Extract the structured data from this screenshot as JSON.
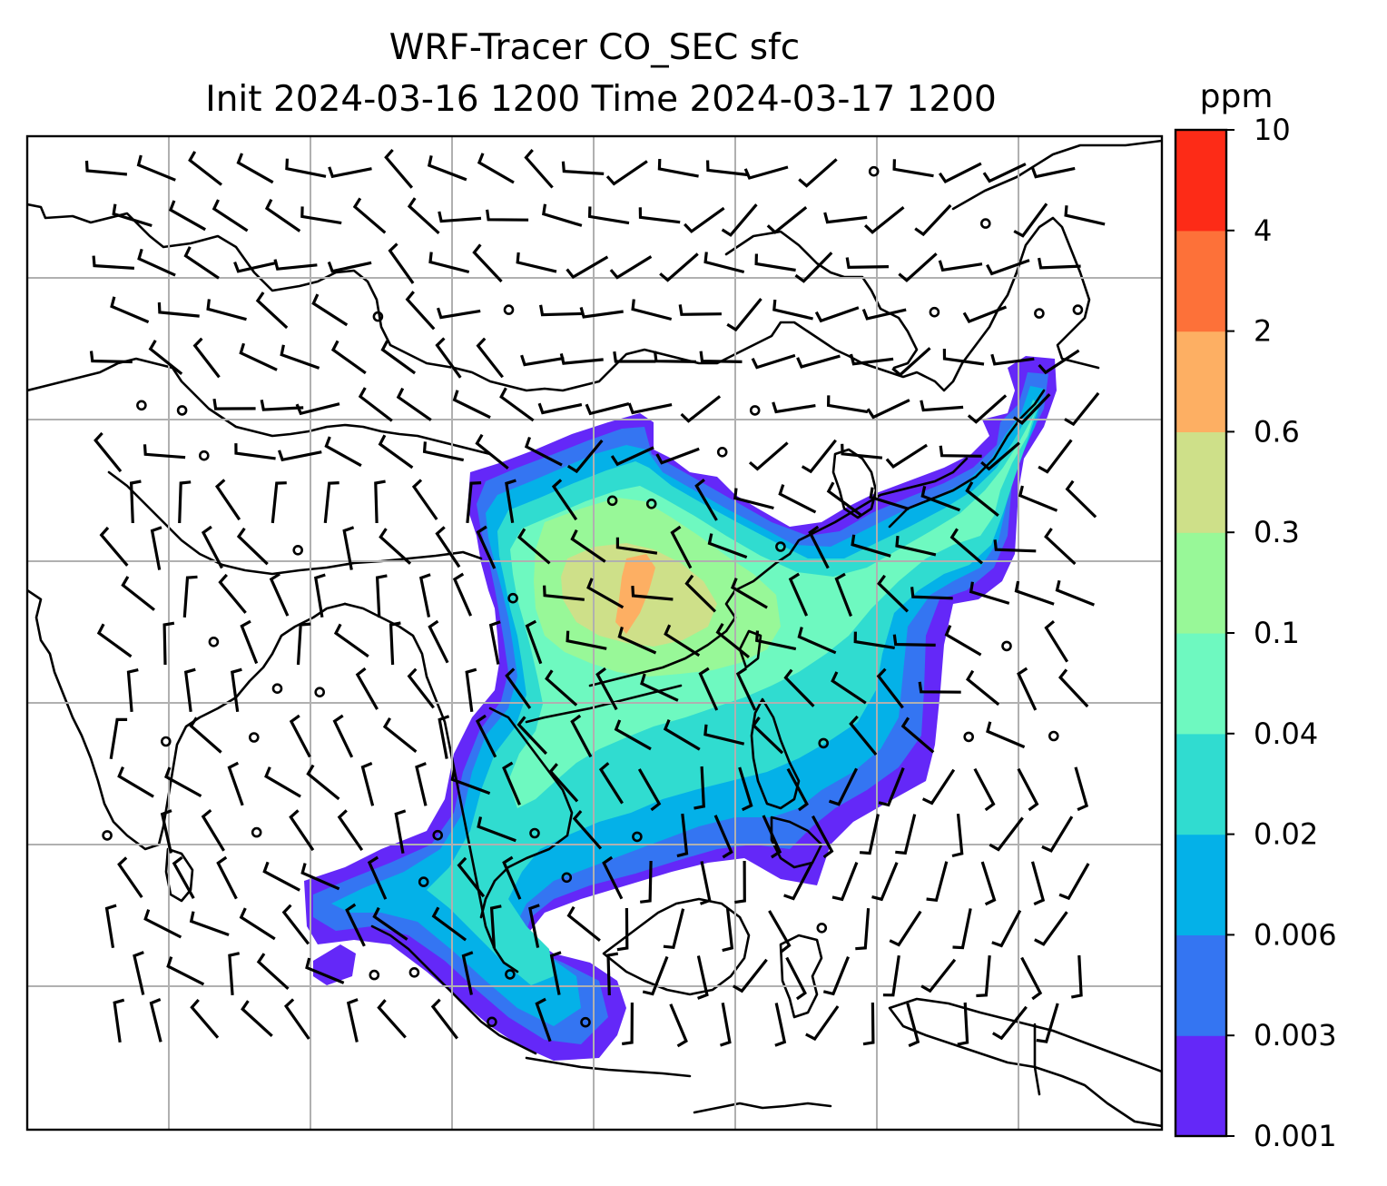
{
  "figure": {
    "title_line1": "WRF-Tracer CO_SEC sfc",
    "title_line2": "Init 2024-03-16 1200 Time 2024-03-17 1200"
  },
  "colorbar": {
    "unit": "ppm",
    "levels": [
      "0.001",
      "0.003",
      "0.006",
      "0.02",
      "0.04",
      "0.1",
      "0.3",
      "0.6",
      "2",
      "4",
      "10"
    ],
    "colors": [
      "#6428f8",
      "#3475f2",
      "#04b1e8",
      "#30dcd0",
      "#6ef9c0",
      "#98f898",
      "#cee089",
      "#fdaf63",
      "#fd7139",
      "#fd2b17"
    ]
  },
  "map": {
    "field": "CO_SEC surface tracer concentration with 10 m wind barbs",
    "gridlines": true,
    "ocean_color": "#ffffff"
  }
}
